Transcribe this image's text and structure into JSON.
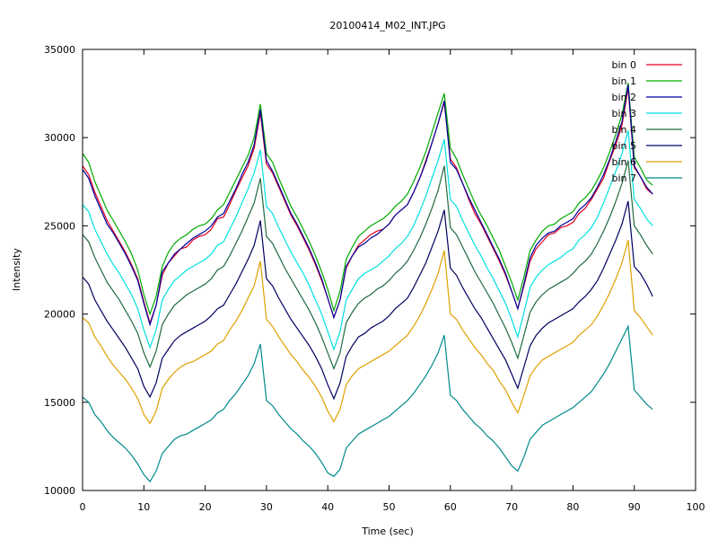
{
  "chart_data": {
    "type": "line",
    "title": "20100414_M02_INT.JPG",
    "xlabel": "Time (sec)",
    "ylabel": "Intensity",
    "xlim": [
      0,
      100
    ],
    "ylim": [
      10000,
      35000
    ],
    "xticks": [
      0,
      10,
      20,
      30,
      40,
      50,
      60,
      70,
      80,
      90,
      100
    ],
    "yticks": [
      10000,
      15000,
      20000,
      25000,
      30000,
      35000
    ],
    "grid": false,
    "legend_position": "top-right",
    "x": [
      0,
      1,
      2,
      3,
      4,
      5,
      6,
      7,
      8,
      9,
      10,
      11,
      12,
      13,
      14,
      15,
      16,
      17,
      18,
      19,
      20,
      21,
      22,
      23,
      24,
      25,
      26,
      27,
      28,
      29,
      30,
      31,
      32,
      33,
      34,
      35,
      36,
      37,
      38,
      39,
      40,
      41,
      42,
      43,
      44,
      45,
      46,
      47,
      48,
      49,
      50,
      51,
      52,
      53,
      54,
      55,
      56,
      57,
      58,
      59,
      60,
      61,
      62,
      63,
      64,
      65,
      66,
      67,
      68,
      69,
      70,
      71,
      72,
      73,
      74,
      75,
      76,
      77,
      78,
      79,
      80,
      81,
      82,
      83,
      84,
      85,
      86,
      87,
      88,
      89,
      90,
      91,
      92,
      93
    ],
    "series": [
      {
        "name": "bin 0",
        "color": "#e0001e",
        "values": [
          28400,
          27900,
          26900,
          26100,
          25300,
          24700,
          24100,
          23500,
          22800,
          22000,
          20700,
          19500,
          20500,
          22200,
          22900,
          23300,
          23700,
          23800,
          24200,
          24400,
          24500,
          24800,
          25400,
          25500,
          26200,
          27000,
          27700,
          28400,
          29400,
          31400,
          28500,
          28000,
          27200,
          26400,
          25600,
          25000,
          24300,
          23600,
          22800,
          21900,
          20900,
          19800,
          20800,
          22600,
          23300,
          23900,
          24200,
          24500,
          24700,
          24800,
          25100,
          25600,
          25900,
          26200,
          26900,
          27700,
          28700,
          29700,
          30800,
          32000,
          28800,
          28300,
          27400,
          26500,
          25700,
          25100,
          24400,
          23700,
          23000,
          22200,
          21300,
          20300,
          21600,
          23000,
          23700,
          24100,
          24500,
          24600,
          24900,
          25000,
          25200,
          25700,
          26000,
          26500,
          27100,
          27700,
          28700,
          29600,
          30700,
          32800,
          28300,
          27800,
          27100,
          26800
        ]
      },
      {
        "name": "bin 1",
        "color": "#00aa00",
        "values": [
          29100,
          28600,
          27500,
          26700,
          25900,
          25300,
          24700,
          24100,
          23400,
          22500,
          21100,
          20000,
          21000,
          22700,
          23500,
          24000,
          24300,
          24500,
          24800,
          25000,
          25100,
          25400,
          25900,
          26200,
          26900,
          27600,
          28300,
          29000,
          30000,
          31900,
          29100,
          28600,
          27700,
          26900,
          26100,
          25500,
          24800,
          24100,
          23300,
          22400,
          21400,
          20200,
          21300,
          23100,
          23800,
          24400,
          24700,
          25000,
          25200,
          25400,
          25700,
          26100,
          26400,
          26800,
          27500,
          28300,
          29200,
          30300,
          31400,
          32500,
          29400,
          28800,
          27900,
          27100,
          26300,
          25600,
          25000,
          24300,
          23600,
          22700,
          21800,
          20800,
          22100,
          23600,
          24200,
          24700,
          25000,
          25100,
          25400,
          25600,
          25800,
          26300,
          26600,
          27000,
          27600,
          28300,
          29200,
          30200,
          31300,
          33100,
          28900,
          28300,
          27600,
          27300
        ]
      },
      {
        "name": "bin 2",
        "color": "#0000a0",
        "values": [
          28200,
          27700,
          26700,
          25900,
          25100,
          24600,
          24000,
          23400,
          22700,
          21900,
          20600,
          19400,
          20500,
          22400,
          22900,
          23400,
          23700,
          24000,
          24300,
          24500,
          24700,
          25000,
          25500,
          25700,
          26400,
          27100,
          27900,
          28600,
          29600,
          31600,
          28700,
          28100,
          27300,
          26500,
          25700,
          25100,
          24400,
          23700,
          22900,
          22000,
          20900,
          19800,
          20800,
          22700,
          23300,
          23800,
          24000,
          24300,
          24500,
          24800,
          25100,
          25600,
          25900,
          26200,
          26900,
          27700,
          28600,
          29700,
          30800,
          32100,
          28600,
          28200,
          27400,
          26600,
          25900,
          25200,
          24500,
          23800,
          23100,
          22300,
          21300,
          20300,
          21700,
          23200,
          23900,
          24300,
          24600,
          24700,
          25000,
          25200,
          25400,
          25900,
          26200,
          26600,
          27200,
          27900,
          28800,
          29800,
          30900,
          33000,
          28400,
          27800,
          27200,
          26800
        ]
      },
      {
        "name": "bin 3",
        "color": "#00e0e0",
        "values": [
          26200,
          25800,
          24800,
          24100,
          23400,
          22800,
          22300,
          21700,
          21100,
          20300,
          19100,
          18100,
          19100,
          20800,
          21400,
          21900,
          22200,
          22500,
          22700,
          22900,
          23100,
          23400,
          23900,
          24100,
          24800,
          25500,
          26300,
          27100,
          28000,
          29300,
          26100,
          25700,
          24900,
          24200,
          23500,
          22900,
          22300,
          21600,
          20800,
          20000,
          19000,
          18000,
          19000,
          20800,
          21400,
          22000,
          22300,
          22500,
          22700,
          23000,
          23300,
          23700,
          24000,
          24400,
          25000,
          25800,
          26700,
          27700,
          28700,
          29900,
          26500,
          26100,
          25300,
          24600,
          23900,
          23300,
          22600,
          22000,
          21300,
          20600,
          19700,
          18700,
          20100,
          21500,
          22100,
          22500,
          22800,
          23000,
          23200,
          23500,
          23700,
          24200,
          24500,
          24900,
          25500,
          26300,
          27200,
          28100,
          29100,
          30400,
          26500,
          26000,
          25400,
          25000
        ]
      },
      {
        "name": "bin 4",
        "color": "#206a40",
        "values": [
          24500,
          24100,
          23200,
          22500,
          21800,
          21300,
          20800,
          20200,
          19600,
          18900,
          17800,
          17000,
          17900,
          19400,
          20000,
          20500,
          20800,
          21100,
          21300,
          21500,
          21700,
          22000,
          22500,
          22700,
          23300,
          24000,
          24700,
          25500,
          26300,
          27700,
          24400,
          24000,
          23300,
          22600,
          22000,
          21400,
          20800,
          20200,
          19500,
          18700,
          17800,
          16900,
          17800,
          19500,
          20100,
          20600,
          20900,
          21100,
          21400,
          21600,
          21900,
          22300,
          22600,
          23000,
          23600,
          24300,
          25100,
          26000,
          27000,
          28400,
          24900,
          24500,
          23800,
          23100,
          22400,
          21800,
          21200,
          20600,
          19900,
          19200,
          18400,
          17500,
          18800,
          20100,
          20700,
          21100,
          21400,
          21600,
          21800,
          22000,
          22300,
          22700,
          23000,
          23400,
          24000,
          24700,
          25500,
          26400,
          27400,
          28700,
          25000,
          24500,
          23900,
          23400
        ]
      },
      {
        "name": "bin 5",
        "color": "#000060",
        "values": [
          22100,
          21700,
          20800,
          20200,
          19600,
          19100,
          18600,
          18100,
          17500,
          16900,
          15900,
          15300,
          16100,
          17500,
          18000,
          18500,
          18800,
          19000,
          19200,
          19400,
          19600,
          19900,
          20300,
          20500,
          21100,
          21700,
          22400,
          23100,
          23900,
          25300,
          22000,
          21600,
          20900,
          20300,
          19700,
          19200,
          18700,
          18200,
          17600,
          16900,
          16000,
          15200,
          16100,
          17600,
          18200,
          18700,
          18900,
          19200,
          19400,
          19600,
          19900,
          20300,
          20600,
          20900,
          21500,
          22200,
          22900,
          23800,
          24700,
          25900,
          22600,
          22200,
          21500,
          20900,
          20300,
          19800,
          19200,
          18600,
          18000,
          17400,
          16600,
          15800,
          17000,
          18200,
          18800,
          19200,
          19500,
          19700,
          19900,
          20100,
          20300,
          20700,
          21000,
          21400,
          21900,
          22600,
          23400,
          24200,
          25100,
          26400,
          22700,
          22300,
          21700,
          21000
        ]
      },
      {
        "name": "bin 6",
        "color": "#e0a000",
        "values": [
          19800,
          19500,
          18700,
          18200,
          17600,
          17100,
          16700,
          16300,
          15800,
          15200,
          14300,
          13800,
          14500,
          15800,
          16300,
          16700,
          17000,
          17200,
          17300,
          17500,
          17700,
          17900,
          18300,
          18500,
          19100,
          19600,
          20200,
          20900,
          21600,
          23000,
          19700,
          19300,
          18700,
          18200,
          17700,
          17300,
          16800,
          16400,
          15900,
          15300,
          14500,
          13900,
          14600,
          16000,
          16500,
          16900,
          17100,
          17300,
          17500,
          17700,
          17900,
          18200,
          18500,
          18800,
          19300,
          19900,
          20600,
          21400,
          22300,
          23600,
          20000,
          19700,
          19100,
          18600,
          18100,
          17700,
          17200,
          16800,
          16200,
          15700,
          15000,
          14400,
          15400,
          16500,
          17000,
          17400,
          17600,
          17800,
          18000,
          18200,
          18400,
          18800,
          19100,
          19400,
          19900,
          20500,
          21200,
          22000,
          22900,
          24200,
          20200,
          19800,
          19300,
          18800
        ]
      },
      {
        "name": "bin 7",
        "color": "#008a8a",
        "values": [
          15300,
          15000,
          14300,
          13900,
          13400,
          13000,
          12700,
          12400,
          12000,
          11500,
          10900,
          10500,
          11100,
          12100,
          12500,
          12900,
          13100,
          13200,
          13400,
          13600,
          13800,
          14000,
          14400,
          14600,
          15100,
          15500,
          16000,
          16500,
          17200,
          18300,
          15100,
          14800,
          14300,
          13900,
          13500,
          13200,
          12800,
          12500,
          12100,
          11600,
          11000,
          10800,
          11200,
          12400,
          12800,
          13200,
          13400,
          13600,
          13800,
          14000,
          14200,
          14500,
          14800,
          15100,
          15500,
          16000,
          16500,
          17100,
          17800,
          18800,
          15400,
          15100,
          14600,
          14200,
          13800,
          13500,
          13100,
          12800,
          12400,
          11900,
          11400,
          11100,
          11900,
          12900,
          13300,
          13700,
          13900,
          14100,
          14300,
          14500,
          14700,
          15000,
          15300,
          15600,
          16100,
          16600,
          17200,
          17900,
          18600,
          19300,
          15700,
          15300,
          14900,
          14600
        ]
      }
    ]
  }
}
